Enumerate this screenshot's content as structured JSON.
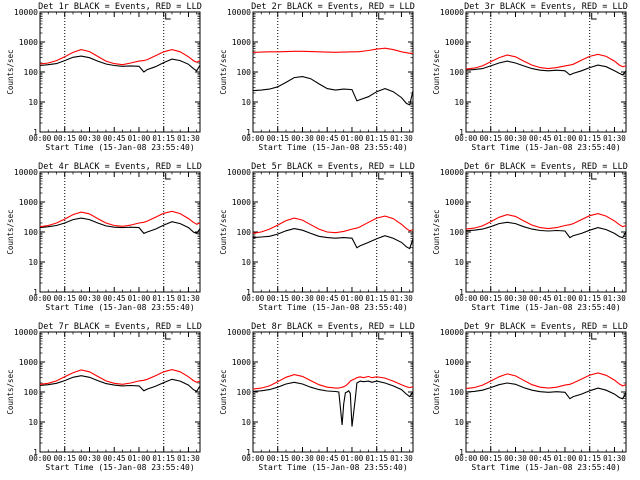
{
  "figure": {
    "ylabel": "Counts/sec",
    "xlabel": "Start Time (15-Jan-08 23:55:40)",
    "x_ticks": [
      "00:00",
      "00:15",
      "00:30",
      "00:45",
      "01:00",
      "01:15",
      "01:30"
    ],
    "y_ticks": [
      "1",
      "10",
      "100",
      "1000",
      "10000"
    ],
    "colors": {
      "events": "#000000",
      "lld": "#ff0000",
      "axes": "#000000"
    }
  },
  "chart_data": [
    {
      "type": "line",
      "title": "Det 1r BLACK = Events, RED = LLD",
      "yscale": "log",
      "ylim": [
        1,
        10000
      ],
      "xlim_min": [
        0,
        97
      ],
      "x": [
        0,
        5,
        10,
        15,
        20,
        25,
        30,
        35,
        40,
        45,
        50,
        55,
        60,
        63,
        65,
        70,
        75,
        80,
        85,
        90,
        93,
        95,
        97
      ],
      "series": [
        {
          "name": "Events",
          "color": "#000000",
          "values": [
            165,
            175,
            190,
            240,
            310,
            340,
            300,
            230,
            185,
            165,
            155,
            160,
            155,
            100,
            120,
            150,
            205,
            270,
            240,
            180,
            130,
            110,
            170
          ]
        },
        {
          "name": "LLD",
          "color": "#ff0000",
          "values": [
            185,
            200,
            240,
            320,
            450,
            560,
            480,
            330,
            230,
            190,
            175,
            200,
            230,
            240,
            260,
            350,
            470,
            560,
            470,
            320,
            240,
            210,
            240
          ]
        }
      ],
      "dotted_vlines_min": [
        15,
        75
      ]
    },
    {
      "type": "line",
      "title": "Det 2r BLACK = Events, RED = LLD",
      "yscale": "log",
      "ylim": [
        1,
        10000
      ],
      "xlim_min": [
        0,
        97
      ],
      "x": [
        0,
        5,
        10,
        15,
        20,
        25,
        30,
        35,
        40,
        45,
        50,
        55,
        60,
        63,
        65,
        70,
        75,
        80,
        85,
        90,
        93,
        95,
        97
      ],
      "series": [
        {
          "name": "Events",
          "color": "#000000",
          "values": [
            24,
            25,
            27,
            32,
            45,
            65,
            70,
            60,
            40,
            28,
            25,
            27,
            26,
            11,
            12,
            15,
            22,
            28,
            22,
            14,
            9,
            8,
            24
          ]
        },
        {
          "name": "LLD",
          "color": "#ff0000",
          "values": [
            450,
            460,
            470,
            470,
            480,
            490,
            490,
            480,
            470,
            460,
            455,
            460,
            470,
            470,
            480,
            520,
            580,
            620,
            560,
            470,
            440,
            420,
            420
          ]
        }
      ],
      "dotted_vlines_min": [
        15,
        75
      ]
    },
    {
      "type": "line",
      "title": "Det 3r BLACK = Events, RED = LLD",
      "yscale": "log",
      "ylim": [
        1,
        10000
      ],
      "xlim_min": [
        0,
        97
      ],
      "x": [
        0,
        5,
        10,
        15,
        20,
        25,
        30,
        35,
        40,
        45,
        50,
        55,
        60,
        63,
        65,
        70,
        75,
        80,
        85,
        90,
        93,
        95,
        97
      ],
      "series": [
        {
          "name": "Events",
          "color": "#000000",
          "values": [
            115,
            120,
            130,
            160,
            200,
            230,
            200,
            160,
            130,
            115,
            110,
            115,
            110,
            80,
            90,
            110,
            140,
            170,
            150,
            110,
            90,
            80,
            110
          ]
        },
        {
          "name": "LLD",
          "color": "#ff0000",
          "values": [
            125,
            135,
            160,
            220,
            300,
            370,
            320,
            230,
            170,
            140,
            130,
            140,
            160,
            170,
            180,
            250,
            330,
            390,
            330,
            230,
            170,
            150,
            160
          ]
        }
      ],
      "dotted_vlines_min": [
        15,
        75
      ]
    },
    {
      "type": "line",
      "title": "Det 4r BLACK = Events, RED = LLD",
      "yscale": "log",
      "ylim": [
        1,
        10000
      ],
      "xlim_min": [
        0,
        97
      ],
      "x": [
        0,
        5,
        10,
        15,
        20,
        25,
        30,
        35,
        40,
        45,
        50,
        55,
        60,
        63,
        65,
        70,
        75,
        80,
        85,
        90,
        93,
        95,
        97
      ],
      "series": [
        {
          "name": "Events",
          "color": "#000000",
          "values": [
            140,
            150,
            165,
            200,
            260,
            290,
            260,
            200,
            160,
            145,
            140,
            145,
            140,
            90,
            100,
            125,
            170,
            220,
            190,
            140,
            100,
            90,
            130
          ]
        },
        {
          "name": "LLD",
          "color": "#ff0000",
          "values": [
            150,
            165,
            200,
            270,
            380,
            460,
            400,
            280,
            200,
            165,
            155,
            170,
            200,
            210,
            230,
            310,
            420,
            490,
            410,
            280,
            210,
            180,
            200
          ]
        }
      ],
      "dotted_vlines_min": [
        15,
        75
      ]
    },
    {
      "type": "line",
      "title": "Det 5r BLACK = Events, RED = LLD",
      "yscale": "log",
      "ylim": [
        1,
        10000
      ],
      "xlim_min": [
        0,
        97
      ],
      "x": [
        0,
        5,
        10,
        15,
        20,
        25,
        30,
        35,
        40,
        45,
        50,
        55,
        60,
        63,
        65,
        70,
        75,
        80,
        85,
        90,
        93,
        95,
        97
      ],
      "series": [
        {
          "name": "Events",
          "color": "#000000",
          "values": [
            65,
            68,
            72,
            85,
            110,
            130,
            115,
            90,
            72,
            65,
            62,
            65,
            62,
            30,
            35,
            45,
            60,
            75,
            62,
            45,
            32,
            28,
            60
          ]
        },
        {
          "name": "LLD",
          "color": "#ff0000",
          "values": [
            90,
            100,
            125,
            170,
            240,
            290,
            250,
            175,
            125,
            100,
            95,
            105,
            125,
            135,
            150,
            210,
            290,
            340,
            280,
            180,
            130,
            110,
            120
          ]
        }
      ],
      "dotted_vlines_min": [
        15,
        75
      ]
    },
    {
      "type": "line",
      "title": "Det 6r BLACK = Events, RED = LLD",
      "yscale": "log",
      "ylim": [
        1,
        10000
      ],
      "xlim_min": [
        0,
        97
      ],
      "x": [
        0,
        5,
        10,
        15,
        20,
        25,
        30,
        35,
        40,
        45,
        50,
        55,
        60,
        63,
        65,
        70,
        75,
        80,
        85,
        90,
        93,
        95,
        97
      ],
      "series": [
        {
          "name": "Events",
          "color": "#000000",
          "values": [
            110,
            115,
            125,
            150,
            190,
            210,
            190,
            150,
            125,
            112,
            108,
            112,
            108,
            65,
            75,
            90,
            115,
            140,
            120,
            90,
            70,
            65,
            100
          ]
        },
        {
          "name": "LLD",
          "color": "#ff0000",
          "values": [
            125,
            135,
            160,
            220,
            310,
            380,
            330,
            235,
            170,
            140,
            130,
            140,
            165,
            175,
            190,
            260,
            350,
            410,
            340,
            235,
            175,
            150,
            165
          ]
        }
      ],
      "dotted_vlines_min": [
        15,
        75
      ]
    },
    {
      "type": "line",
      "title": "Det 7r BLACK = Events, RED = LLD",
      "yscale": "log",
      "ylim": [
        1,
        10000
      ],
      "xlim_min": [
        0,
        97
      ],
      "x": [
        0,
        5,
        10,
        15,
        20,
        25,
        30,
        35,
        40,
        45,
        50,
        55,
        60,
        63,
        65,
        70,
        75,
        80,
        85,
        90,
        93,
        95,
        97
      ],
      "series": [
        {
          "name": "Events",
          "color": "#000000",
          "values": [
            165,
            175,
            195,
            240,
            310,
            350,
            310,
            240,
            190,
            170,
            160,
            165,
            160,
            110,
            125,
            155,
            205,
            265,
            230,
            170,
            120,
            105,
            160
          ]
        },
        {
          "name": "LLD",
          "color": "#ff0000",
          "values": [
            180,
            195,
            235,
            320,
            440,
            540,
            470,
            330,
            235,
            195,
            180,
            200,
            235,
            245,
            265,
            350,
            470,
            560,
            470,
            320,
            240,
            210,
            230
          ]
        }
      ],
      "dotted_vlines_min": [
        15,
        75
      ]
    },
    {
      "type": "line",
      "title": "Det 8r BLACK = Events, RED = LLD",
      "yscale": "log",
      "ylim": [
        1,
        10000
      ],
      "xlim_min": [
        0,
        97
      ],
      "x": [
        0,
        5,
        10,
        15,
        20,
        25,
        30,
        35,
        40,
        45,
        50,
        52,
        53,
        54,
        55,
        56,
        57,
        58,
        59,
        60,
        62,
        63,
        65,
        67,
        70,
        72,
        75,
        80,
        85,
        90,
        93,
        95,
        97
      ],
      "series": [
        {
          "name": "Events",
          "color": "#000000",
          "values": [
            105,
            110,
            120,
            145,
            185,
            210,
            185,
            145,
            120,
            108,
            104,
            100,
            30,
            8,
            40,
            95,
            100,
            110,
            90,
            7,
            60,
            200,
            230,
            220,
            230,
            210,
            230,
            200,
            160,
            120,
            85,
            70,
            100
          ]
        },
        {
          "name": "LLD",
          "color": "#ff0000",
          "values": [
            125,
            135,
            160,
            220,
            310,
            380,
            330,
            240,
            175,
            145,
            135,
            135,
            140,
            145,
            150,
            160,
            175,
            200,
            230,
            250,
            280,
            300,
            320,
            300,
            330,
            300,
            320,
            290,
            230,
            175,
            150,
            140,
            150
          ]
        }
      ],
      "dotted_vlines_min": [
        15,
        75
      ]
    },
    {
      "type": "line",
      "title": "Det 9r BLACK = Events, RED = LLD",
      "yscale": "log",
      "ylim": [
        1,
        10000
      ],
      "xlim_min": [
        0,
        97
      ],
      "x": [
        0,
        5,
        10,
        15,
        20,
        25,
        30,
        35,
        40,
        45,
        50,
        55,
        60,
        63,
        65,
        70,
        75,
        80,
        85,
        90,
        93,
        95,
        97
      ],
      "series": [
        {
          "name": "Events",
          "color": "#000000",
          "values": [
            100,
            105,
            115,
            140,
            175,
            200,
            180,
            140,
            115,
            102,
            98,
            102,
            98,
            60,
            70,
            85,
            110,
            135,
            115,
            85,
            65,
            60,
            95
          ]
        },
        {
          "name": "LLD",
          "color": "#ff0000",
          "values": [
            130,
            140,
            170,
            230,
            320,
            400,
            345,
            245,
            175,
            145,
            135,
            145,
            170,
            180,
            200,
            270,
            365,
            430,
            360,
            250,
            185,
            160,
            175
          ]
        }
      ],
      "dotted_vlines_min": [
        15,
        75
      ]
    }
  ]
}
